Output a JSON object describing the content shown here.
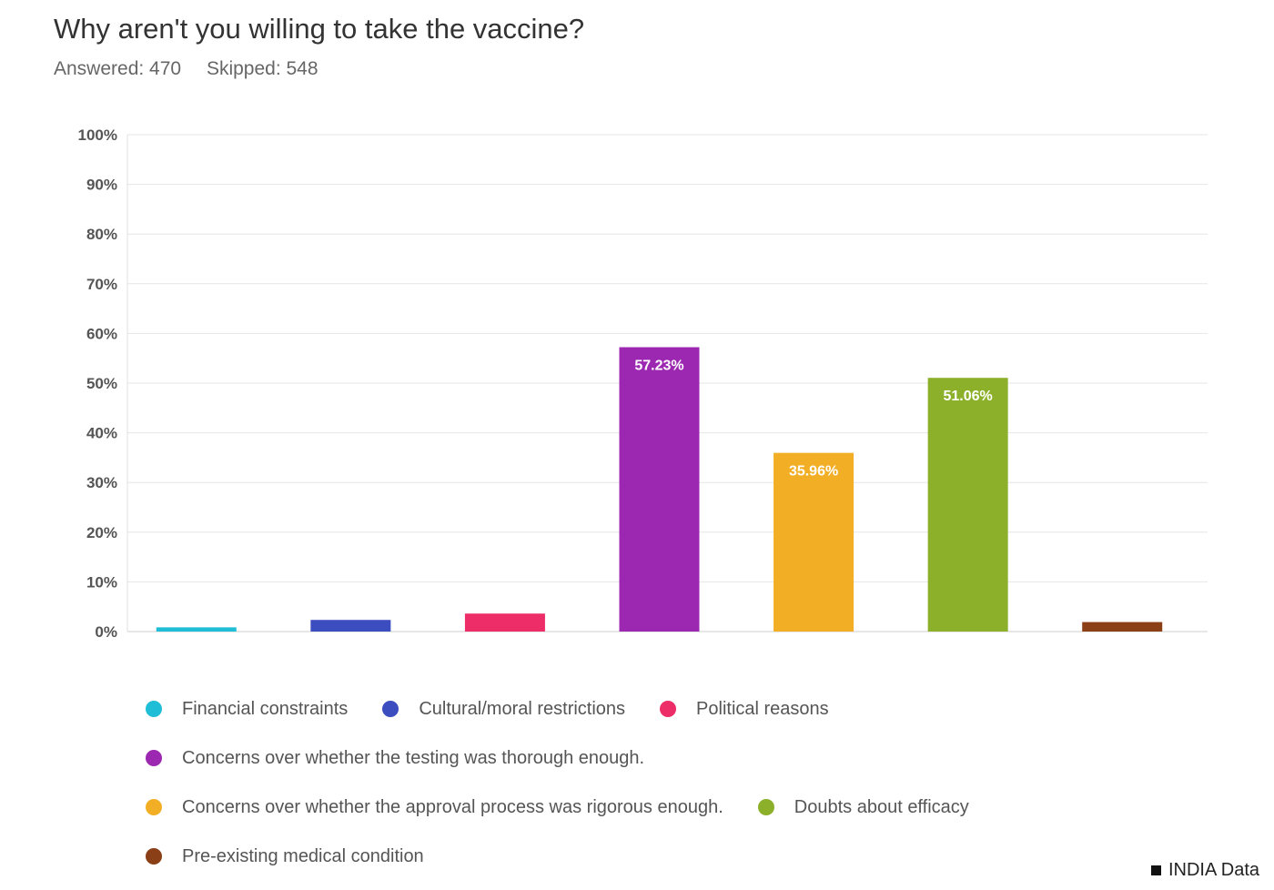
{
  "header": {
    "title": "Why aren't you willing to take the vaccine?",
    "answered": "Answered: 470",
    "skipped": "Skipped: 548"
  },
  "chart_data": {
    "type": "bar",
    "categories": [
      "Financial constraints",
      "Cultural/moral restrictions",
      "Political reasons",
      "Concerns over whether the testing was thorough enough.",
      "Concerns over whether the approval process was rigorous enough.",
      "Doubts about efficacy",
      "Pre-existing medical condition"
    ],
    "values": [
      0.85,
      2.34,
      3.62,
      57.23,
      35.96,
      51.06,
      1.91
    ],
    "data_labels": [
      "",
      "",
      "",
      "57.23%",
      "35.96%",
      "51.06%",
      ""
    ],
    "colors": [
      "#1fbed6",
      "#3b4dbf",
      "#ec2d67",
      "#9c27b0",
      "#f2af26",
      "#8cb02a",
      "#8b3f17"
    ],
    "ylim": [
      0,
      100
    ],
    "yticks": [
      "0%",
      "10%",
      "20%",
      "30%",
      "40%",
      "50%",
      "60%",
      "70%",
      "80%",
      "90%",
      "100%"
    ],
    "grid": true,
    "legend_position": "bottom"
  },
  "legend_rows": [
    [
      0,
      1,
      2
    ],
    [
      3
    ],
    [
      4,
      5
    ],
    [
      6
    ]
  ],
  "source": {
    "label": "INDIA Data",
    "icon": "square-icon"
  }
}
